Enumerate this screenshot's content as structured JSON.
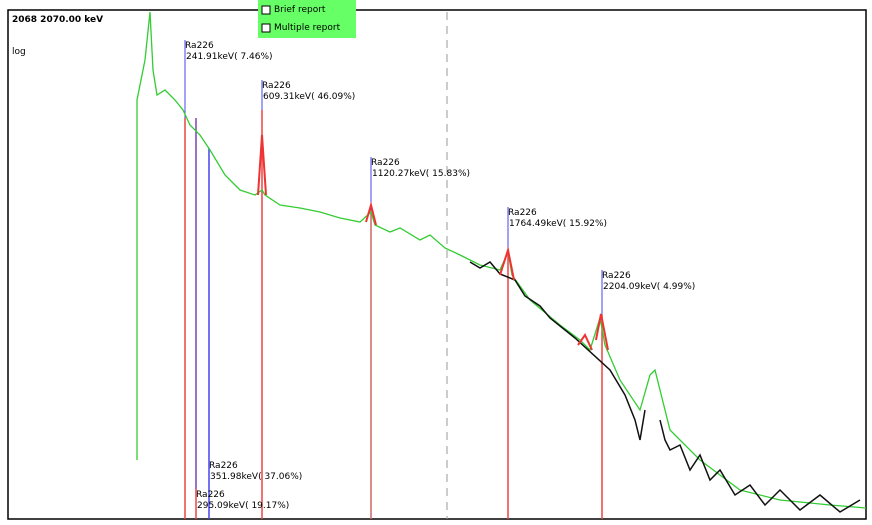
{
  "header": {
    "energy": "2068  2070.00 keV",
    "scale": "log"
  },
  "options": [
    "Brief report",
    "Multiple report"
  ],
  "peaks": [
    {
      "nuclide": "Ra226",
      "label": "241.91keV( 7.46%)"
    },
    {
      "nuclide": "Ra226",
      "label": "609.31keV( 46.09%)"
    },
    {
      "nuclide": "Ra226",
      "label": "1120.27keV( 15.83%)"
    },
    {
      "nuclide": "Ra226",
      "label": "1764.49keV( 15.92%)"
    },
    {
      "nuclide": "Ra226",
      "label": "2204.09keV( 4.99%)"
    },
    {
      "nuclide": "Ra226",
      "label": "351.98keV( 37.06%)"
    },
    {
      "nuclide": "Ra226",
      "label": "295.09keV( 19.17%)"
    }
  ]
}
